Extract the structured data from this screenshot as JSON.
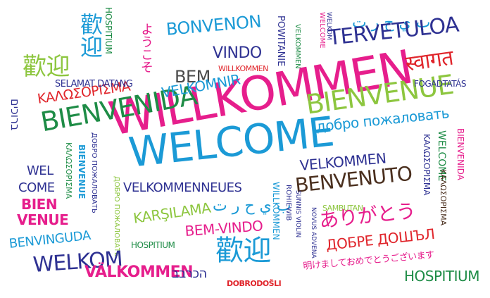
{
  "words": [
    {
      "text": "WILLKOMMEN",
      "color": "#e61e8c"
    },
    {
      "text": "WELCOME",
      "color": "#1b9ad6"
    },
    {
      "text": "BIENVENIDA",
      "color": "#1e8c46"
    },
    {
      "text": "BIENVENUE",
      "color": "#8dc63f"
    },
    {
      "text": "ΚΑΛΩΣΟΡΙΣΜΑ",
      "color": "#e0252b"
    },
    {
      "text": "SELAMAT DATANG",
      "color": "#2e3192"
    },
    {
      "text": "BEM",
      "color": "#4a4a4a"
    },
    {
      "text": "VELKOMNIR",
      "color": "#1b9ad6"
    },
    {
      "text": "BONVENON",
      "color": "#1b9ad6"
    },
    {
      "text": "VINDO",
      "color": "#2e3192"
    },
    {
      "text": "WILLKOMMEN",
      "color": "#e0252b"
    },
    {
      "text": "POWITANIE",
      "color": "#2e3192"
    },
    {
      "text": "VELKOMMEN",
      "color": "#1e8c46"
    },
    {
      "text": "WELCOME",
      "color": "#e61e8c"
    },
    {
      "text": "WELKOM",
      "color": "#2e3192"
    },
    {
      "text": "ب ي ح ر ت",
      "color": "#1b9ad6"
    },
    {
      "text": "TERVETULOA",
      "color": "#2e3192"
    },
    {
      "text": "स्वागत",
      "color": "#e0252b"
    },
    {
      "text": "FOGADTATÁS",
      "color": "#2e3192"
    },
    {
      "text": "добро пожаловать",
      "color": "#1b9ad6"
    },
    {
      "text": "歡迎",
      "color": "#8dc63f"
    },
    {
      "text": "歡迎",
      "color": "#1b9ad6"
    },
    {
      "text": "HOSPITIUM",
      "color": "#1e8c46"
    },
    {
      "text": "ようこそ",
      "color": "#e61e8c"
    },
    {
      "text": "ברוכים",
      "color": "#2e3192"
    },
    {
      "text": "WEL",
      "color": "#2e3192"
    },
    {
      "text": "COME",
      "color": "#2e3192"
    },
    {
      "text": "BIEN",
      "color": "#e61e8c"
    },
    {
      "text": "VENUE",
      "color": "#e61e8c"
    },
    {
      "text": "ΚΑΛΩΣΟΡΙΣΜΑ",
      "color": "#1e8c46"
    },
    {
      "text": "BIENVENUE",
      "color": "#1b9ad6"
    },
    {
      "text": "ДОБРО ПОЖАЛОВАТЬ",
      "color": "#2e3192"
    },
    {
      "text": "ДОБРО ПОЖАЛОВАТЬ",
      "color": "#8dc63f"
    },
    {
      "text": "VELKOMMENNEUES",
      "color": "#2e3192"
    },
    {
      "text": "ب ي ح ر ت",
      "color": "#1b9ad6"
    },
    {
      "text": "VELKOMMEN",
      "color": "#2e3192"
    },
    {
      "text": "BENVENUTO",
      "color": "#4a2f1e"
    },
    {
      "text": "ΚΑΛΩΣΟΡΙΣΜΑ",
      "color": "#2e3192"
    },
    {
      "text": "WELCOME",
      "color": "#1e8c46"
    },
    {
      "text": "BIENVENIDA",
      "color": "#e61e8c"
    },
    {
      "text": "ΚΑΛΩΣΟΡΙΣΜΑ",
      "color": "#4a2f1e"
    },
    {
      "text": "BENVINGUDA",
      "color": "#1b9ad6"
    },
    {
      "text": "KARŞILAMA",
      "color": "#8dc63f"
    },
    {
      "text": "HOSPITIUM",
      "color": "#1e8c46"
    },
    {
      "text": "BEM-VINDO",
      "color": "#e61e8c"
    },
    {
      "text": "WELKOM",
      "color": "#2e3192"
    },
    {
      "text": "VÄLKOMMEN",
      "color": "#e61e8c"
    },
    {
      "text": "歡迎",
      "color": "#1b9ad6"
    },
    {
      "text": "הכרבב",
      "color": "#2e3192"
    },
    {
      "text": "DOBRODOŠLI",
      "color": "#e0252b"
    },
    {
      "text": "NOVUS ADVENA",
      "color": "#2e3192"
    },
    {
      "text": "SAMBUTAN",
      "color": "#8dc63f"
    },
    {
      "text": "ありがとう",
      "color": "#e61e8c"
    },
    {
      "text": "ДОБРЕ ДОШЪЛ",
      "color": "#e0252b"
    },
    {
      "text": "明けましておめでとうございます",
      "color": "#e61e8c"
    },
    {
      "text": "HOSPITIUM",
      "color": "#1e8c46"
    },
    {
      "text": "WILLKOMMEN",
      "color": "#1b9ad6"
    },
    {
      "text": "ROHIEWIB",
      "color": "#2e3192"
    },
    {
      "text": "SUNNIS VIOLIN",
      "color": "#2e3192"
    }
  ]
}
